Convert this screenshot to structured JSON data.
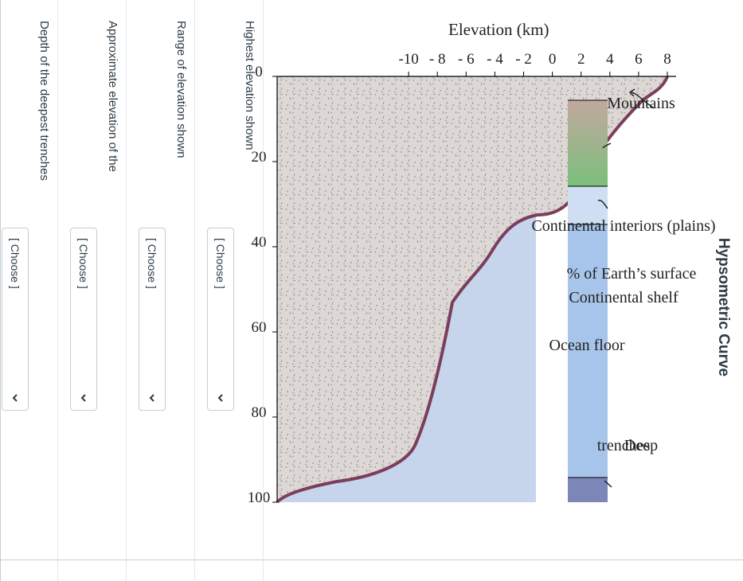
{
  "quiz": {
    "title": "Hypsometric Curve"
  },
  "figure": {
    "y_axis_label": "Elevation (km)",
    "x_axis_label": "% of Earth’s surface",
    "y_ticks": [
      "8",
      "6",
      "4",
      "2",
      "0",
      "- 2",
      "- 4",
      "- 6",
      "- 8",
      "-10"
    ],
    "x_ticks": [
      "0",
      "20",
      "40",
      "60",
      "80",
      "100"
    ],
    "bar_labels": {
      "mountains": "Mountains",
      "interiors": "Continental interiors (plains)",
      "shelf": "Continental shelf",
      "ocean_floor": "Ocean floor",
      "deep_line1": "Deep",
      "deep_line2": "trenches"
    },
    "colors": {
      "land": "#ddd8d5",
      "ocean": "#c6d5ec",
      "curve": "#7b3e5d",
      "mountains_bar": "#ece0e2",
      "plains_top": "#c2a89f",
      "plains_bottom": "#7bbf7c",
      "shelf_bar": "#cfdef2",
      "ocean_bar": "#a7c4ea",
      "trench_bar": "#7c87b7"
    }
  },
  "questions": [
    {
      "label": "Highest elevation shown",
      "select_value": "[ Choose ]"
    },
    {
      "label": "Range of elevation shown",
      "select_value": "[ Choose ]"
    },
    {
      "label": "Approximate elevation of the",
      "select_value": "[ Choose ]"
    },
    {
      "label": "Depth of the deepest trenches",
      "select_value": "[ Choose ]"
    }
  ]
}
